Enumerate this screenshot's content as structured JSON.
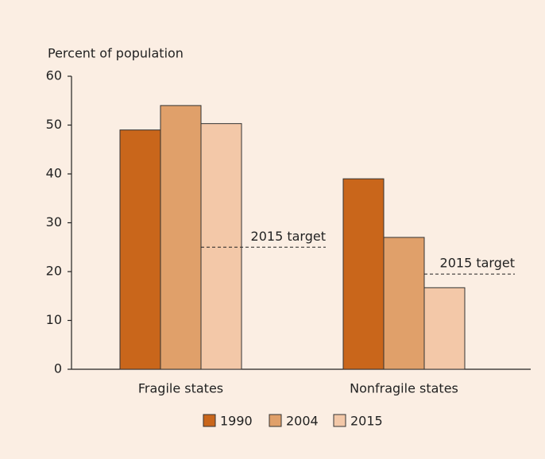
{
  "chart_data": {
    "type": "bar",
    "y_label": "Percent of population",
    "categories": [
      "Fragile states",
      "Nonfragile states"
    ],
    "series": [
      {
        "name": "1990",
        "color": "#c9661b",
        "values": [
          49,
          39
        ]
      },
      {
        "name": "2004",
        "color": "#e0a06a",
        "values": [
          54,
          27
        ]
      },
      {
        "name": "2015",
        "color": "#f3c8a8",
        "values": [
          50.3,
          16.7
        ]
      }
    ],
    "annotations": [
      {
        "text": "2015 target",
        "value": 25
      },
      {
        "text": "2015 target",
        "value": 19.5
      }
    ],
    "ylim": [
      0,
      60
    ],
    "yticks": [
      0,
      10,
      20,
      30,
      40,
      50,
      60
    ],
    "grid": false
  }
}
